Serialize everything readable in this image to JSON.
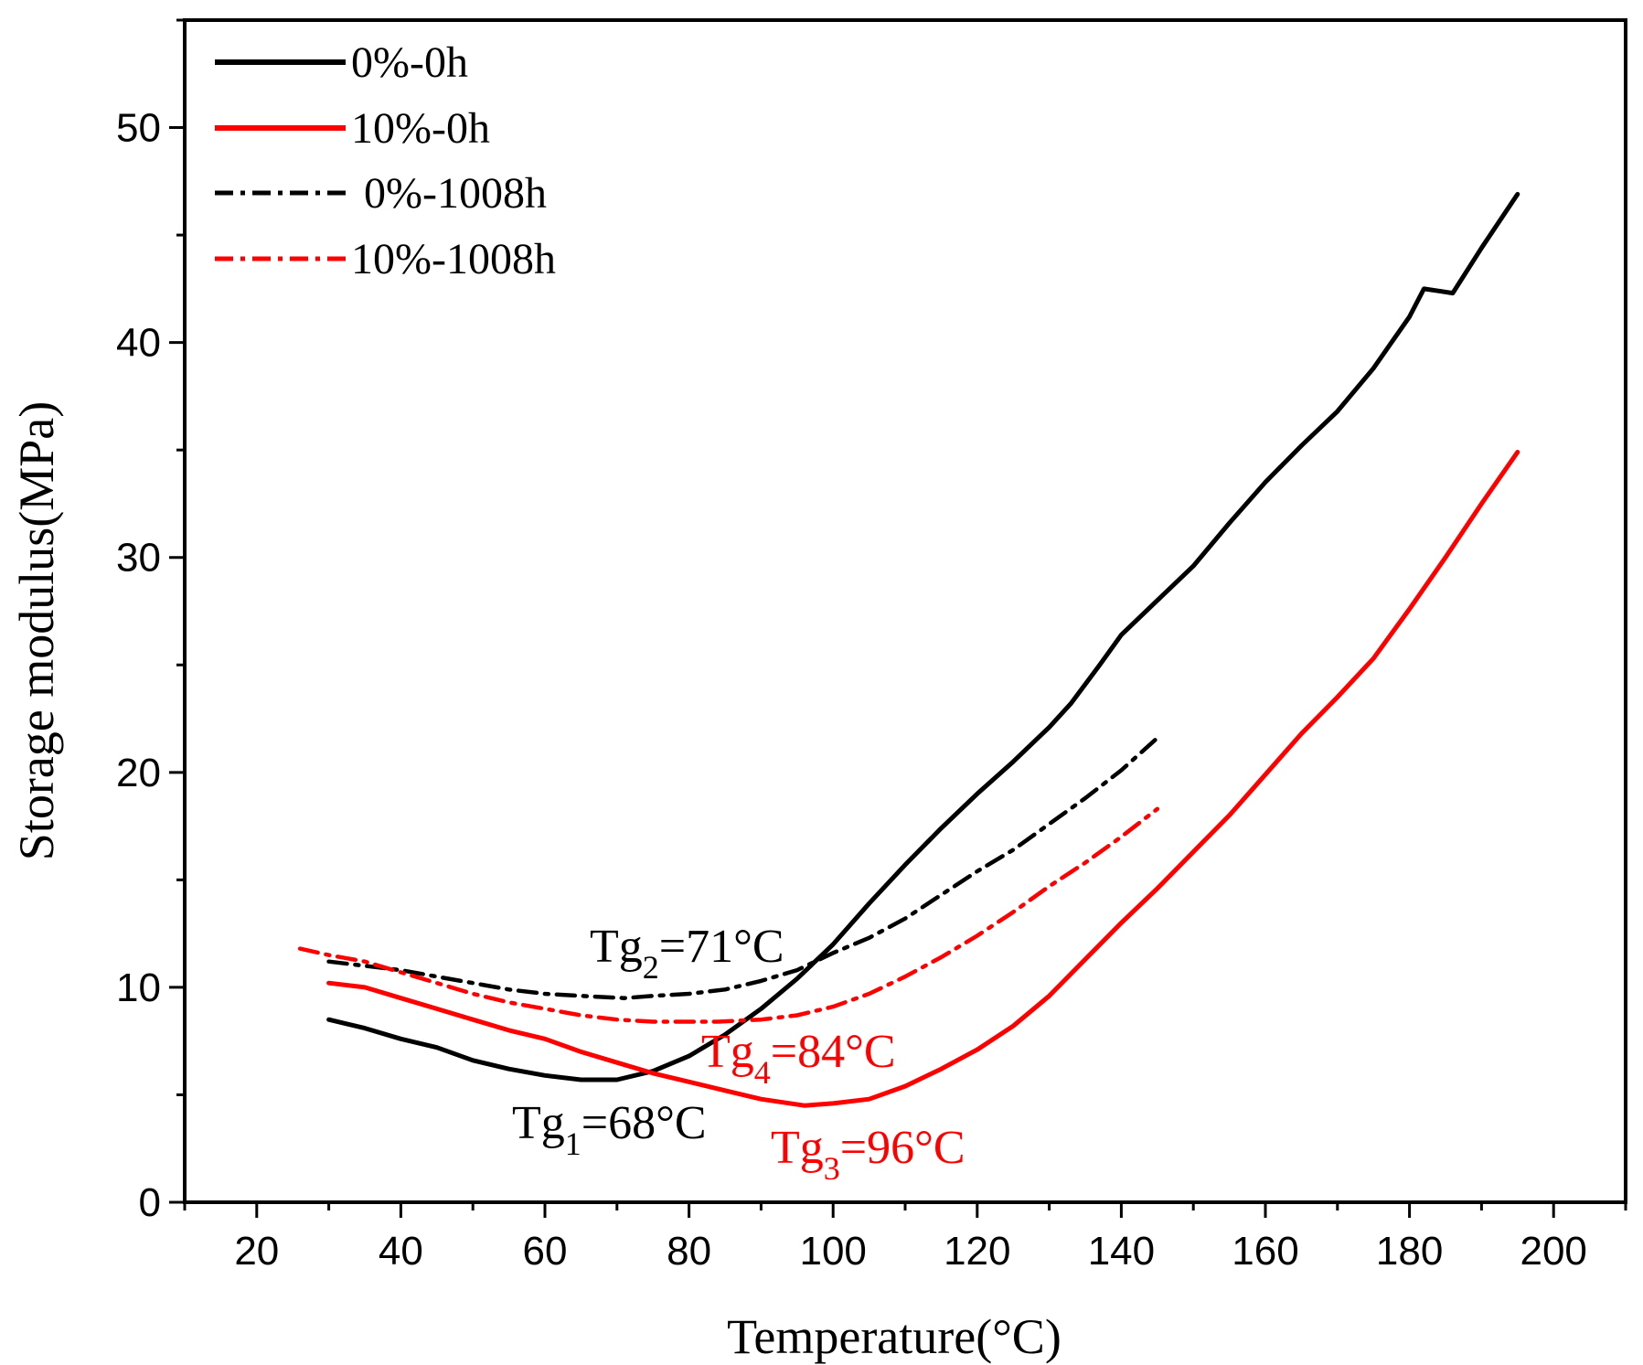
{
  "chart_data": {
    "type": "line",
    "title": "",
    "xlabel": "Temperature(°C)",
    "ylabel": "Storage modulus(MPa)",
    "xlim": [
      10,
      210
    ],
    "ylim": [
      0,
      55
    ],
    "xticks": [
      20,
      40,
      60,
      80,
      100,
      120,
      140,
      160,
      180,
      200
    ],
    "yticks": [
      0,
      10,
      20,
      30,
      40,
      50
    ],
    "grid": false,
    "legend_position": "top-left",
    "series": [
      {
        "name": "0%-0h",
        "color": "#000000",
        "style": "solid",
        "points": [
          [
            30,
            8.5
          ],
          [
            35,
            8.1
          ],
          [
            40,
            7.6
          ],
          [
            45,
            7.2
          ],
          [
            50,
            6.6
          ],
          [
            55,
            6.2
          ],
          [
            60,
            5.9
          ],
          [
            65,
            5.7
          ],
          [
            70,
            5.7
          ],
          [
            75,
            6.1
          ],
          [
            80,
            6.8
          ],
          [
            85,
            7.8
          ],
          [
            90,
            9.0
          ],
          [
            95,
            10.4
          ],
          [
            100,
            12.0
          ],
          [
            105,
            13.9
          ],
          [
            110,
            15.7
          ],
          [
            115,
            17.4
          ],
          [
            120,
            19.0
          ],
          [
            125,
            20.5
          ],
          [
            130,
            22.1
          ],
          [
            133,
            23.2
          ],
          [
            137,
            25.0
          ],
          [
            140,
            26.4
          ],
          [
            145,
            28.0
          ],
          [
            150,
            29.6
          ],
          [
            155,
            31.6
          ],
          [
            160,
            33.5
          ],
          [
            165,
            35.2
          ],
          [
            170,
            36.8
          ],
          [
            175,
            38.8
          ],
          [
            180,
            41.2
          ],
          [
            182,
            42.5
          ],
          [
            184,
            42.4
          ],
          [
            186,
            42.3
          ],
          [
            190,
            44.4
          ],
          [
            195,
            46.9
          ]
        ]
      },
      {
        "name": "10%-0h",
        "color": "#ff0000",
        "style": "solid",
        "points": [
          [
            30,
            10.2
          ],
          [
            35,
            10.0
          ],
          [
            40,
            9.5
          ],
          [
            45,
            9.0
          ],
          [
            50,
            8.5
          ],
          [
            55,
            8.0
          ],
          [
            60,
            7.6
          ],
          [
            65,
            7.0
          ],
          [
            70,
            6.5
          ],
          [
            75,
            6.0
          ],
          [
            80,
            5.6
          ],
          [
            85,
            5.2
          ],
          [
            90,
            4.8
          ],
          [
            96,
            4.5
          ],
          [
            100,
            4.6
          ],
          [
            105,
            4.8
          ],
          [
            110,
            5.4
          ],
          [
            115,
            6.2
          ],
          [
            120,
            7.1
          ],
          [
            125,
            8.2
          ],
          [
            130,
            9.6
          ],
          [
            135,
            11.3
          ],
          [
            140,
            13.0
          ],
          [
            145,
            14.6
          ],
          [
            150,
            16.3
          ],
          [
            155,
            18.0
          ],
          [
            160,
            19.9
          ],
          [
            165,
            21.8
          ],
          [
            170,
            23.5
          ],
          [
            175,
            25.3
          ],
          [
            180,
            27.6
          ],
          [
            185,
            30.0
          ],
          [
            190,
            32.5
          ],
          [
            195,
            34.9
          ]
        ]
      },
      {
        "name": "0%-1008h",
        "color": "#000000",
        "style": "dashdot",
        "points": [
          [
            30,
            11.2
          ],
          [
            35,
            11.0
          ],
          [
            40,
            10.8
          ],
          [
            45,
            10.5
          ],
          [
            50,
            10.2
          ],
          [
            55,
            9.9
          ],
          [
            60,
            9.7
          ],
          [
            65,
            9.6
          ],
          [
            71,
            9.5
          ],
          [
            75,
            9.6
          ],
          [
            80,
            9.7
          ],
          [
            85,
            9.9
          ],
          [
            90,
            10.3
          ],
          [
            95,
            10.8
          ],
          [
            100,
            11.6
          ],
          [
            105,
            12.3
          ],
          [
            110,
            13.2
          ],
          [
            115,
            14.3
          ],
          [
            120,
            15.4
          ],
          [
            125,
            16.4
          ],
          [
            130,
            17.6
          ],
          [
            135,
            18.8
          ],
          [
            140,
            20.1
          ],
          [
            145,
            21.6
          ]
        ]
      },
      {
        "name": "10%-1008h",
        "color": "#ff0000",
        "style": "dashdot",
        "points": [
          [
            26,
            11.8
          ],
          [
            30,
            11.5
          ],
          [
            35,
            11.2
          ],
          [
            40,
            10.7
          ],
          [
            45,
            10.2
          ],
          [
            50,
            9.7
          ],
          [
            55,
            9.3
          ],
          [
            60,
            9.0
          ],
          [
            65,
            8.7
          ],
          [
            70,
            8.5
          ],
          [
            75,
            8.4
          ],
          [
            80,
            8.4
          ],
          [
            84,
            8.4
          ],
          [
            90,
            8.5
          ],
          [
            95,
            8.7
          ],
          [
            100,
            9.1
          ],
          [
            105,
            9.7
          ],
          [
            110,
            10.5
          ],
          [
            115,
            11.4
          ],
          [
            120,
            12.4
          ],
          [
            125,
            13.5
          ],
          [
            130,
            14.7
          ],
          [
            135,
            15.8
          ],
          [
            140,
            17.0
          ],
          [
            145,
            18.3
          ]
        ]
      }
    ],
    "annotations": [
      {
        "id": "tg1",
        "base": "Tg",
        "sub": "1",
        "rest": "=68°C",
        "color": "#000000"
      },
      {
        "id": "tg2",
        "base": "Tg",
        "sub": "2",
        "rest": "=71°C",
        "color": "#000000"
      },
      {
        "id": "tg3",
        "base": "Tg",
        "sub": "3",
        "rest": "=96°C",
        "color": "#ff0000"
      },
      {
        "id": "tg4",
        "base": "Tg",
        "sub": "4",
        "rest": "=84°C",
        "color": "#ff0000"
      }
    ]
  }
}
